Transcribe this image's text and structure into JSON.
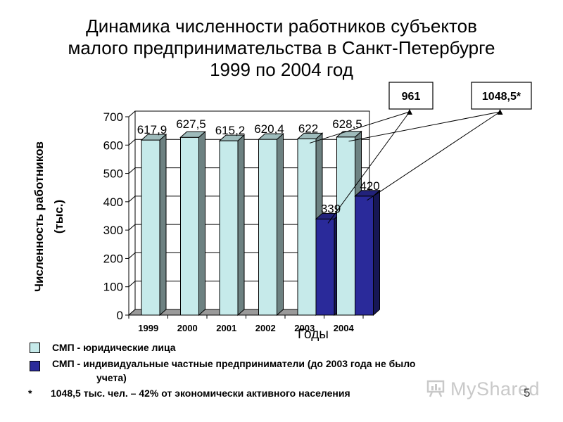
{
  "slide": {
    "title_lines": [
      "Динамика численности работников субъектов",
      "малого предпринимательства в Санкт-Петербурге",
      "1999 по 2004 год"
    ],
    "page_number": "5",
    "watermark": "MyShared"
  },
  "chart_data": {
    "type": "bar",
    "xlabel": "Годы",
    "ylabel": "Численность работников (тыс.)",
    "categories": [
      "1999",
      "2000",
      "2001",
      "2002",
      "2003",
      "2004"
    ],
    "ylim": [
      0,
      700
    ],
    "yticks": [
      0,
      100,
      200,
      300,
      400,
      500,
      600,
      700
    ],
    "grid": true,
    "series": [
      {
        "name": "СМП - юридические лица",
        "color": "#c6eaea",
        "values": [
          617.9,
          627.5,
          615.2,
          620.4,
          622,
          628.5
        ],
        "labels": [
          "617,9",
          "627,5",
          "615,2",
          "620,4",
          "622",
          "628,5"
        ]
      },
      {
        "name": "СМП - индивидуальные частные предприниматели (до 2003 года не было учета)",
        "color": "#2a2a9a",
        "values": [
          null,
          null,
          null,
          null,
          339,
          420
        ],
        "labels": [
          "",
          "",
          "",
          "",
          "339",
          "420"
        ]
      }
    ],
    "callouts": [
      {
        "text": "961",
        "category": "2003"
      },
      {
        "text": "1048,5*",
        "category": "2004"
      }
    ]
  },
  "legend": {
    "items": [
      {
        "line1": "СМП - юридические лица",
        "line2": "",
        "color": "#c6eaea"
      },
      {
        "line1": "СМП - индивидуальные частные предприниматели (до 2003 года не было",
        "line2": "учета)",
        "color": "#2a2a9a"
      }
    ]
  },
  "footnote": {
    "star": "*",
    "text": "1048,5 тыс. чел. – 42% от экономически активного населения"
  }
}
